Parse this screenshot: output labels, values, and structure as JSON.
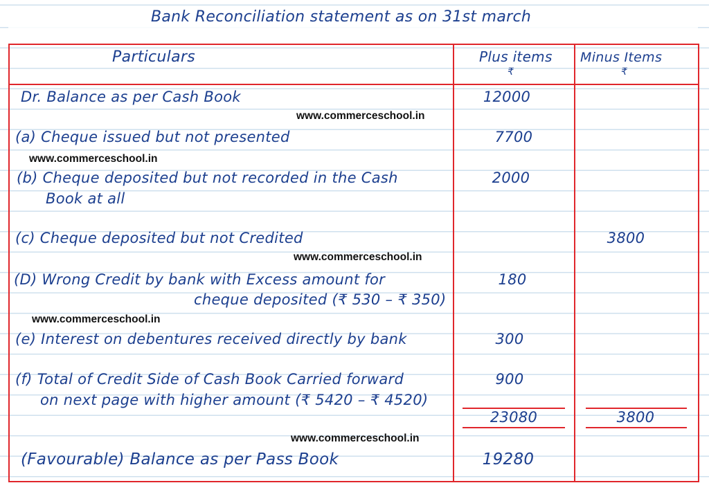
{
  "title": "Bank Reconciliation statement as on 31st march",
  "headers": {
    "particulars": "Particulars",
    "plus": "Plus items",
    "plus_unit": "₹",
    "minus": "Minus Items",
    "minus_unit": "₹"
  },
  "watermark": "www.commerceschool.in",
  "rows": [
    {
      "label": "Dr. Balance as per Cash Book",
      "plus": "12000",
      "minus": ""
    },
    {
      "label": "(a) Cheque issued but not presented",
      "plus": "7700",
      "minus": ""
    },
    {
      "label": "(b) Cheque deposited but not recorded in the Cash",
      "label2": "Book at all",
      "plus": "2000",
      "minus": ""
    },
    {
      "label": "(c) Cheque deposited but not Credited",
      "plus": "",
      "minus": "3800"
    },
    {
      "label": "(D) Wrong Credit by bank with Excess amount for",
      "label2": "cheque deposited (₹ 530 – ₹ 350)",
      "plus": "180",
      "minus": ""
    },
    {
      "label": "(e) Interest on debentures received directly by bank",
      "plus": "300",
      "minus": ""
    },
    {
      "label": "(f) Total of Credit Side of Cash Book Carried forward",
      "label2": "on next page with higher amount (₹ 5420 – ₹ 4520)",
      "plus": "900",
      "minus": ""
    }
  ],
  "totals": {
    "plus": "23080",
    "minus": "3800"
  },
  "final": {
    "label": "(Favourable) Balance as per Pass Book",
    "plus": "19280"
  },
  "colors": {
    "ink": "#1c3f8f",
    "rule": "#e0262b",
    "paper_lines": "#cfe0ee"
  }
}
